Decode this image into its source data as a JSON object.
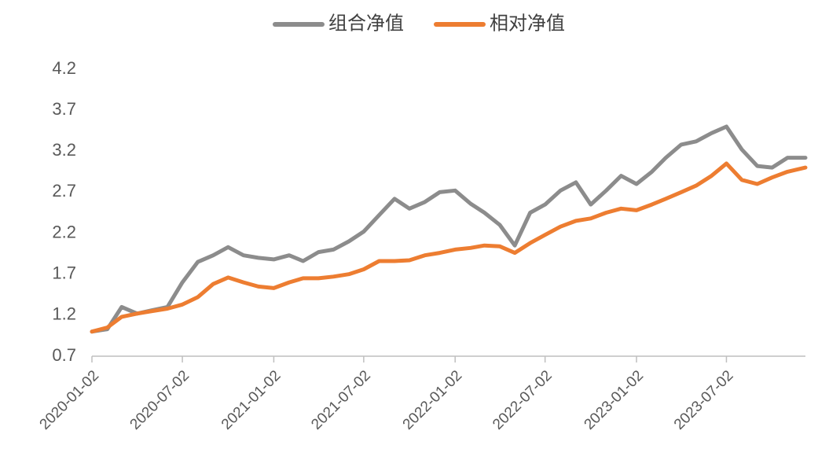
{
  "chart_data": {
    "type": "line",
    "x": [
      "2020-01-02",
      "2020-02-02",
      "2020-03-02",
      "2020-04-02",
      "2020-05-02",
      "2020-06-02",
      "2020-07-02",
      "2020-08-02",
      "2020-09-02",
      "2020-10-02",
      "2020-11-02",
      "2020-12-02",
      "2021-01-02",
      "2021-02-02",
      "2021-03-02",
      "2021-04-02",
      "2021-05-02",
      "2021-06-02",
      "2021-07-02",
      "2021-08-02",
      "2021-09-02",
      "2021-10-02",
      "2021-11-02",
      "2021-12-02",
      "2022-01-02",
      "2022-02-02",
      "2022-03-02",
      "2022-04-02",
      "2022-05-02",
      "2022-06-02",
      "2022-07-02",
      "2022-08-02",
      "2022-09-02",
      "2022-10-02",
      "2022-11-02",
      "2022-12-02",
      "2023-01-02",
      "2023-02-02",
      "2023-03-02",
      "2023-04-02",
      "2023-05-02",
      "2023-06-02",
      "2023-07-02",
      "2023-08-02",
      "2023-09-02",
      "2023-10-02",
      "2023-11-02",
      "2023-12-08"
    ],
    "series": [
      {
        "name": "组合净值",
        "color": "#8c8c8c",
        "values": [
          1.0,
          1.03,
          1.3,
          1.22,
          1.26,
          1.3,
          1.6,
          1.85,
          1.93,
          2.03,
          1.93,
          1.9,
          1.88,
          1.93,
          1.86,
          1.97,
          2.0,
          2.1,
          2.22,
          2.42,
          2.62,
          2.5,
          2.58,
          2.7,
          2.72,
          2.56,
          2.45,
          2.3,
          2.05,
          2.45,
          2.55,
          2.72,
          2.82,
          2.55,
          2.72,
          2.9,
          2.8,
          2.95,
          3.12,
          3.28,
          3.32,
          3.42,
          3.5,
          3.22,
          3.02,
          3.0,
          3.12,
          3.12
        ]
      },
      {
        "name": "相对净值",
        "color": "#ed7d31",
        "values": [
          1.0,
          1.05,
          1.18,
          1.22,
          1.25,
          1.28,
          1.33,
          1.42,
          1.58,
          1.66,
          1.6,
          1.55,
          1.53,
          1.6,
          1.65,
          1.65,
          1.67,
          1.7,
          1.76,
          1.86,
          1.86,
          1.87,
          1.93,
          1.96,
          2.0,
          2.02,
          2.05,
          2.04,
          1.96,
          2.08,
          2.18,
          2.28,
          2.35,
          2.38,
          2.45,
          2.5,
          2.48,
          2.55,
          2.62,
          2.7,
          2.78,
          2.9,
          3.05,
          2.85,
          2.8,
          2.88,
          2.95,
          3.0
        ]
      }
    ],
    "xlim": [
      "2020-01-02",
      "2023-12-08"
    ],
    "xticks": [
      "2020-01-02",
      "2020-07-02",
      "2021-01-02",
      "2021-07-02",
      "2022-01-02",
      "2022-07-02",
      "2023-01-02",
      "2023-07-02"
    ],
    "ylim": [
      0.7,
      4.2
    ],
    "yticks": [
      0.7,
      1.2,
      1.7,
      2.2,
      2.7,
      3.2,
      3.7,
      4.2
    ],
    "legend": "top"
  }
}
